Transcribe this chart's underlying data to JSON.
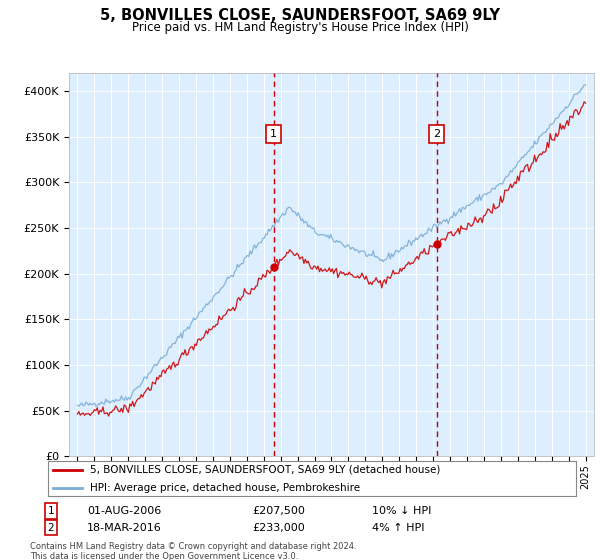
{
  "title": "5, BONVILLES CLOSE, SAUNDERSFOOT, SA69 9LY",
  "subtitle": "Price paid vs. HM Land Registry's House Price Index (HPI)",
  "legend_line1": "5, BONVILLES CLOSE, SAUNDERSFOOT, SA69 9LY (detached house)",
  "legend_line2": "HPI: Average price, detached house, Pembrokeshire",
  "annotation1_date": "01-AUG-2006",
  "annotation1_price": "£207,500",
  "annotation1_hpi": "10% ↓ HPI",
  "annotation2_date": "18-MAR-2016",
  "annotation2_price": "£233,000",
  "annotation2_hpi": "4% ↑ HPI",
  "copyright": "Contains HM Land Registry data © Crown copyright and database right 2024.\nThis data is licensed under the Open Government Licence v3.0.",
  "red_color": "#cc0000",
  "blue_color": "#7aadd4",
  "bg_color": "#ddeeff",
  "vline1_x": 2006.58,
  "vline2_x": 2016.21,
  "sale1_y": 207500,
  "sale2_y": 233000,
  "ylim_max": 420000,
  "xlim_start": 1994.5,
  "xlim_end": 2025.5,
  "yticks": [
    0,
    50000,
    100000,
    150000,
    200000,
    250000,
    300000,
    350000,
    400000
  ],
  "ylabels": [
    "£0",
    "£50K",
    "£100K",
    "£150K",
    "£200K",
    "£250K",
    "£300K",
    "£350K",
    "£400K"
  ],
  "xticks_start": 1995,
  "xticks_end": 2025
}
